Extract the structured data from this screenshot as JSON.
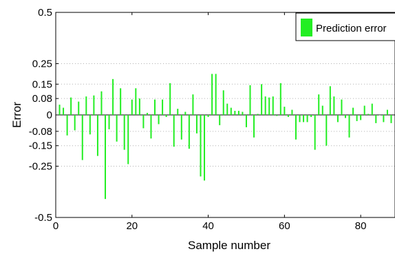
{
  "chart_data": {
    "type": "bar",
    "xlabel": "Sample number",
    "ylabel": "Error",
    "xlim": [
      0,
      89
    ],
    "ylim": [
      -0.5,
      0.5
    ],
    "x_ticks": [
      0,
      20,
      40,
      60,
      80
    ],
    "x_tick_labels": [
      "0",
      "20",
      "40",
      "60",
      "80"
    ],
    "y_ticks": [
      -0.5,
      -0.25,
      -0.15,
      -0.08,
      0,
      0.08,
      0.15,
      0.25,
      0.5
    ],
    "y_tick_labels": [
      "-0.5",
      "-0.25",
      "-0.15",
      "-0.08",
      "0",
      "0.08",
      "0.15",
      "0.25",
      "0.5"
    ],
    "y_grid": true,
    "legend_position": "top-right",
    "series": [
      {
        "name": "Prediction error",
        "color": "#22ee22",
        "x": [
          1,
          2,
          3,
          4,
          5,
          6,
          7,
          8,
          9,
          10,
          11,
          12,
          13,
          14,
          15,
          16,
          17,
          18,
          19,
          20,
          21,
          22,
          23,
          24,
          25,
          26,
          27,
          28,
          29,
          30,
          31,
          32,
          33,
          34,
          35,
          36,
          37,
          38,
          39,
          40,
          41,
          42,
          43,
          44,
          45,
          46,
          47,
          48,
          49,
          50,
          51,
          52,
          53,
          54,
          55,
          56,
          57,
          58,
          59,
          60,
          61,
          62,
          63,
          64,
          65,
          66,
          67,
          68,
          69,
          70,
          71,
          72,
          73,
          74,
          75,
          76,
          77,
          78,
          79,
          80,
          81,
          82,
          83,
          84,
          85,
          86,
          87,
          88
        ],
        "values": [
          0.05,
          0.035,
          -0.1,
          0.085,
          -0.075,
          0.065,
          -0.22,
          0.09,
          -0.095,
          0.095,
          -0.2,
          0.115,
          -0.41,
          -0.07,
          0.175,
          -0.13,
          0.13,
          -0.17,
          -0.24,
          0.075,
          0.13,
          0.08,
          -0.065,
          0.01,
          -0.115,
          0.075,
          -0.045,
          0.075,
          -0.01,
          0.155,
          -0.155,
          0.03,
          -0.12,
          0.015,
          -0.165,
          0.1,
          -0.09,
          -0.3,
          -0.32,
          -0.01,
          0.2,
          0.2,
          -0.05,
          0.12,
          0.055,
          0.035,
          0.02,
          0.02,
          0.015,
          -0.06,
          0.145,
          -0.11,
          0.005,
          0.15,
          0.09,
          0.085,
          0.09,
          -0.005,
          0.155,
          0.04,
          -0.01,
          0.025,
          -0.12,
          -0.035,
          -0.035,
          -0.035,
          -0.01,
          -0.17,
          0.1,
          0.045,
          -0.15,
          0.14,
          0.09,
          -0.035,
          0.075,
          -0.015,
          -0.11,
          0.035,
          -0.03,
          -0.025,
          0.045,
          0.005,
          0.055,
          -0.04,
          0.0,
          -0.035,
          0.025,
          -0.04
        ]
      }
    ]
  }
}
